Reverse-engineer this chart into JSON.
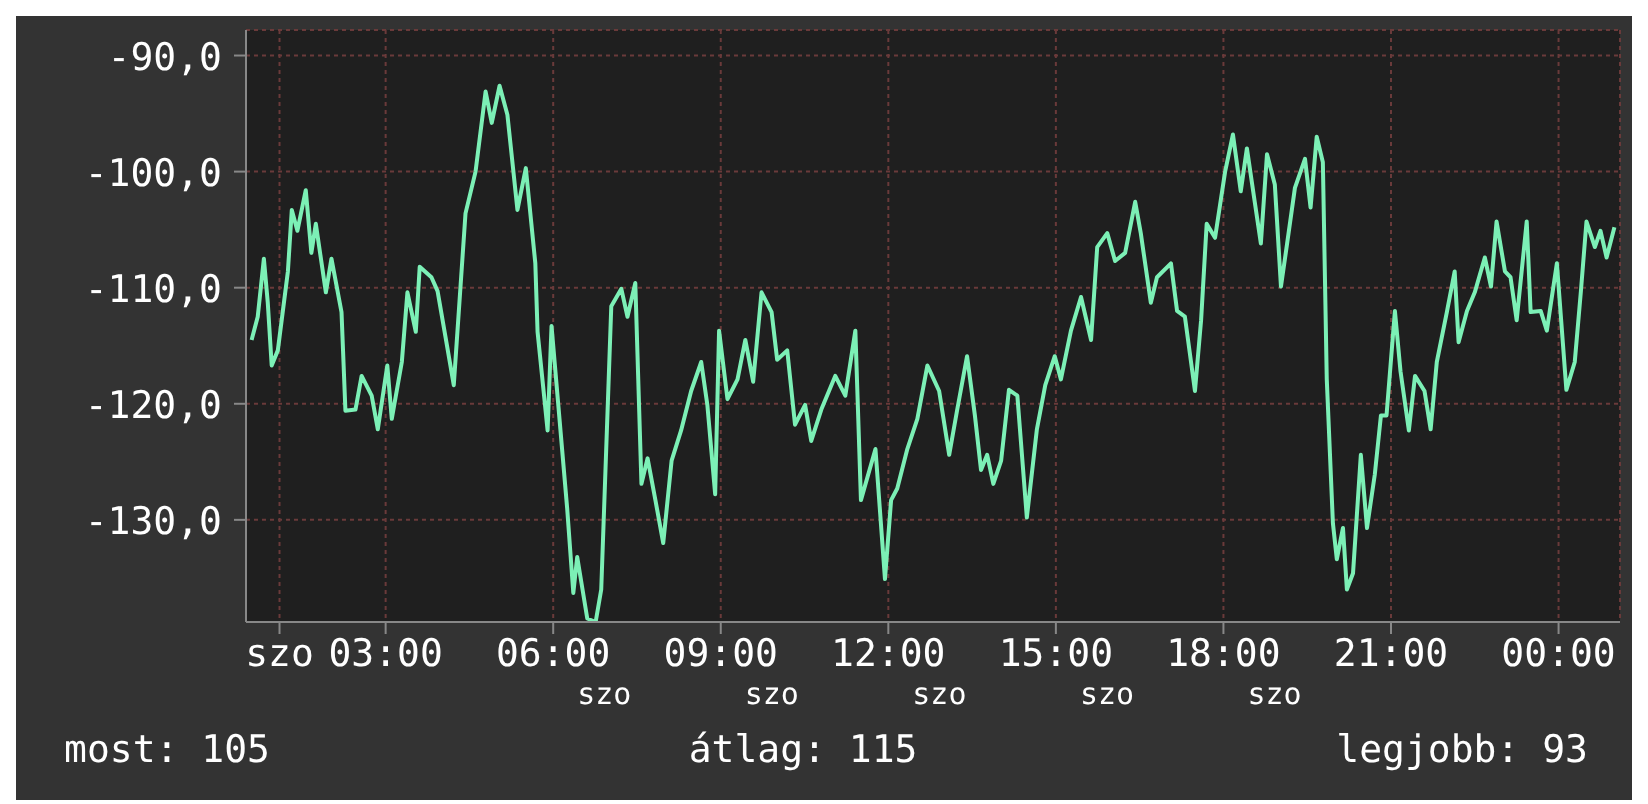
{
  "chart_data": {
    "type": "line",
    "x": [
      0.6,
      0.71,
      0.82,
      0.89,
      0.96,
      1.07,
      1.25,
      1.32,
      1.42,
      1.57,
      1.67,
      1.75,
      1.93,
      2.03,
      2.21,
      2.28,
      2.46,
      2.57,
      2.75,
      2.86,
      3.03,
      3.11,
      3.29,
      3.39,
      3.54,
      3.61,
      3.82,
      3.93,
      4.07,
      4.22,
      4.43,
      4.61,
      4.79,
      4.9,
      5.04,
      5.18,
      5.36,
      5.51,
      5.68,
      5.72,
      5.9,
      5.97,
      6.25,
      6.36,
      6.43,
      6.61,
      6.76,
      6.86,
      7.04,
      7.22,
      7.33,
      7.47,
      7.58,
      7.69,
      7.83,
      7.97,
      8.12,
      8.29,
      8.47,
      8.65,
      8.76,
      8.9,
      8.97,
      9.12,
      9.3,
      9.44,
      9.58,
      9.73,
      9.91,
      10.01,
      10.19,
      10.33,
      10.51,
      10.62,
      10.8,
      11.05,
      11.23,
      11.41,
      11.51,
      11.77,
      11.94,
      12.05,
      12.16,
      12.34,
      12.52,
      12.7,
      12.91,
      13.09,
      13.23,
      13.41,
      13.55,
      13.66,
      13.77,
      13.88,
      14.02,
      14.16,
      14.31,
      14.48,
      14.66,
      14.81,
      14.98,
      15.09,
      15.27,
      15.45,
      15.63,
      15.74,
      15.92,
      16.06,
      16.24,
      16.42,
      16.52,
      16.7,
      16.81,
      17.06,
      17.17,
      17.31,
      17.49,
      17.6,
      17.7,
      17.85,
      18.03,
      18.17,
      18.31,
      18.42,
      18.56,
      18.67,
      18.78,
      18.92,
      19.03,
      19.14,
      19.28,
      19.46,
      19.56,
      19.67,
      19.78,
      19.85,
      19.96,
      20.03,
      20.14,
      20.21,
      20.32,
      20.46,
      20.57,
      20.71,
      20.82,
      20.92,
      21.07,
      21.17,
      21.32,
      21.43,
      21.6,
      21.71,
      21.82,
      22.0,
      22.14,
      22.21,
      22.36,
      22.5,
      22.68,
      22.79,
      22.89,
      23.04,
      23.14,
      23.25,
      23.43,
      23.5,
      23.68,
      23.79,
      23.97,
      24.14,
      24.29,
      24.4,
      24.5,
      24.65,
      24.75,
      24.86,
      25.0
    ],
    "series": [
      {
        "color": "#7cf0b6",
        "values": [
          -114.5,
          -112.5,
          -107.5,
          -111.3,
          -116.7,
          -115.4,
          -108.6,
          -103.3,
          -105.1,
          -101.6,
          -107.0,
          -104.5,
          -110.4,
          -107.5,
          -112.1,
          -120.6,
          -120.5,
          -117.6,
          -119.3,
          -122.2,
          -116.7,
          -121.3,
          -116.4,
          -110.4,
          -113.8,
          -108.2,
          -109.1,
          -110.3,
          -114.2,
          -118.4,
          -103.6,
          -100.0,
          -93.1,
          -95.8,
          -92.6,
          -95.1,
          -103.3,
          -99.7,
          -107.9,
          -113.8,
          -122.3,
          -113.3,
          -129.0,
          -136.3,
          -133.2,
          -138.5,
          -138.8,
          -136.0,
          -111.6,
          -110.1,
          -112.5,
          -109.6,
          -126.9,
          -124.7,
          -128.3,
          -132.0,
          -124.9,
          -122.3,
          -118.9,
          -116.4,
          -120.1,
          -127.8,
          -113.7,
          -119.6,
          -117.9,
          -114.5,
          -118.1,
          -110.4,
          -112.1,
          -116.2,
          -115.4,
          -121.8,
          -120.1,
          -123.2,
          -120.5,
          -117.6,
          -119.3,
          -113.7,
          -128.3,
          -123.9,
          -135.1,
          -128.3,
          -127.3,
          -123.9,
          -121.3,
          -116.7,
          -118.9,
          -124.4,
          -120.6,
          -115.9,
          -121.0,
          -125.7,
          -124.4,
          -126.9,
          -124.9,
          -118.8,
          -119.3,
          -129.8,
          -122.2,
          -118.4,
          -115.9,
          -117.9,
          -113.7,
          -110.8,
          -114.5,
          -106.5,
          -105.3,
          -107.7,
          -107.0,
          -102.6,
          -105.3,
          -111.3,
          -109.1,
          -107.9,
          -112.0,
          -112.5,
          -118.9,
          -112.8,
          -104.5,
          -105.7,
          -100.0,
          -96.8,
          -101.7,
          -98.0,
          -102.6,
          -106.2,
          -98.5,
          -101.1,
          -109.9,
          -106.2,
          -101.4,
          -98.9,
          -103.1,
          -97.0,
          -99.2,
          -117.9,
          -130.3,
          -133.4,
          -130.7,
          -136.0,
          -134.6,
          -124.4,
          -130.7,
          -126.1,
          -121.0,
          -121.0,
          -112.0,
          -117.2,
          -122.3,
          -117.6,
          -118.9,
          -122.2,
          -116.4,
          -112.1,
          -108.6,
          -114.7,
          -112.0,
          -110.4,
          -107.4,
          -109.9,
          -104.3,
          -108.6,
          -109.1,
          -112.8,
          -104.3,
          -112.1,
          -112.0,
          -113.7,
          -107.9,
          -118.8,
          -116.4,
          -110.3,
          -104.3,
          -106.5,
          -105.1,
          -107.4,
          -104.8
        ]
      }
    ],
    "xlim": [
      0.5,
      25.1
    ],
    "xticks": [
      {
        "value": 1.1,
        "label": "szo"
      },
      {
        "value": 3,
        "label": "03:00"
      },
      {
        "value": 6,
        "label": "06:00"
      },
      {
        "value": 9,
        "label": "09:00"
      },
      {
        "value": 12,
        "label": "12:00"
      },
      {
        "value": 15,
        "label": "15:00"
      },
      {
        "value": 18,
        "label": "18:00"
      },
      {
        "value": 21,
        "label": "21:00"
      },
      {
        "value": 24,
        "label": "00:00"
      }
    ],
    "ylim": [
      -138.8,
      -87.8
    ],
    "yticks": [
      {
        "value": -130,
        "label": "-130,0"
      },
      {
        "value": -120,
        "label": "-120,0"
      },
      {
        "value": -110,
        "label": "-110,0"
      },
      {
        "value": -100,
        "label": "-100,0"
      },
      {
        "value": -90,
        "label": "-90,0"
      }
    ],
    "grid": true,
    "annotations": [
      "szo",
      "szo",
      "szo",
      "szo",
      "szo",
      "most: 105",
      "átlag: 115",
      "legjobb: 93"
    ]
  }
}
